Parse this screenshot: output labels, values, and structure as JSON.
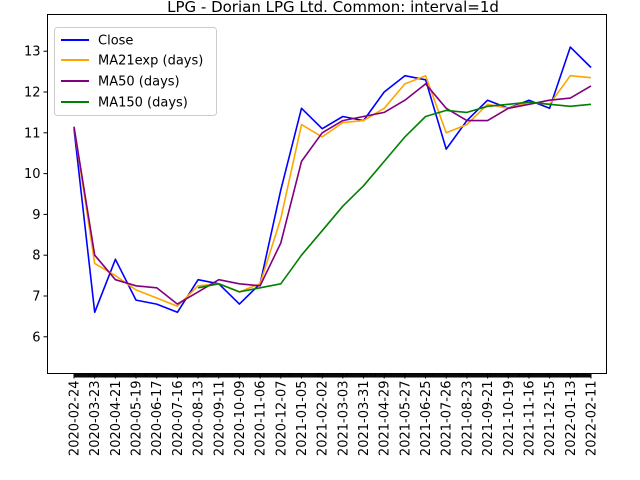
{
  "chart_data": {
    "type": "line",
    "title": "LPG - Dorian LPG Ltd. Common: interval=1d",
    "xlabel": "",
    "ylabel": "",
    "ylim": [
      5.1,
      13.9
    ],
    "yticks": [
      "6",
      "7",
      "8",
      "9",
      "10",
      "11",
      "12",
      "13"
    ],
    "grid": false,
    "legend_position": "top-left",
    "x": [
      "2020-02-24",
      "2020-03-23",
      "2020-04-21",
      "2020-05-19",
      "2020-06-17",
      "2020-07-16",
      "2020-08-13",
      "2020-09-11",
      "2020-10-09",
      "2020-11-06",
      "2020-12-07",
      "2021-01-05",
      "2021-02-02",
      "2021-03-03",
      "2021-03-31",
      "2021-04-29",
      "2021-05-27",
      "2021-06-25",
      "2021-07-26",
      "2021-08-23",
      "2021-09-21",
      "2021-10-19",
      "2021-11-16",
      "2021-12-15",
      "2022-01-13",
      "2022-02-11"
    ],
    "series": [
      {
        "name": "Close",
        "color": "#0000ff",
        "values": [
          11.1,
          6.6,
          7.9,
          6.9,
          6.8,
          6.6,
          7.4,
          7.3,
          6.8,
          7.3,
          9.6,
          11.6,
          11.1,
          11.4,
          11.3,
          12.0,
          12.4,
          12.3,
          10.6,
          11.3,
          11.8,
          11.6,
          11.8,
          11.6,
          13.1,
          12.6
        ]
      },
      {
        "name": "MA21exp (days)",
        "color": "#ffa500",
        "values": [
          11.15,
          7.8,
          7.5,
          7.15,
          6.95,
          6.75,
          7.25,
          7.3,
          7.1,
          7.3,
          8.9,
          11.2,
          10.9,
          11.25,
          11.3,
          11.6,
          12.2,
          12.4,
          11.0,
          11.2,
          11.7,
          11.6,
          11.75,
          11.7,
          12.4,
          12.35
        ]
      },
      {
        "name": "MA50 (days)",
        "color": "#800080",
        "values": [
          11.15,
          8.0,
          7.4,
          7.25,
          7.2,
          6.8,
          7.1,
          7.4,
          7.3,
          7.25,
          8.3,
          10.3,
          11.0,
          11.3,
          11.4,
          11.5,
          11.8,
          12.2,
          11.6,
          11.3,
          11.3,
          11.6,
          11.7,
          11.8,
          11.85,
          12.15
        ]
      },
      {
        "name": "MA150 (days)",
        "color": "#008000",
        "values": [
          null,
          null,
          null,
          null,
          null,
          null,
          7.2,
          7.3,
          7.1,
          7.2,
          7.3,
          8.0,
          8.6,
          9.2,
          9.7,
          10.3,
          10.9,
          11.4,
          11.55,
          11.5,
          11.65,
          11.7,
          11.75,
          11.7,
          11.65,
          11.7
        ]
      }
    ]
  }
}
